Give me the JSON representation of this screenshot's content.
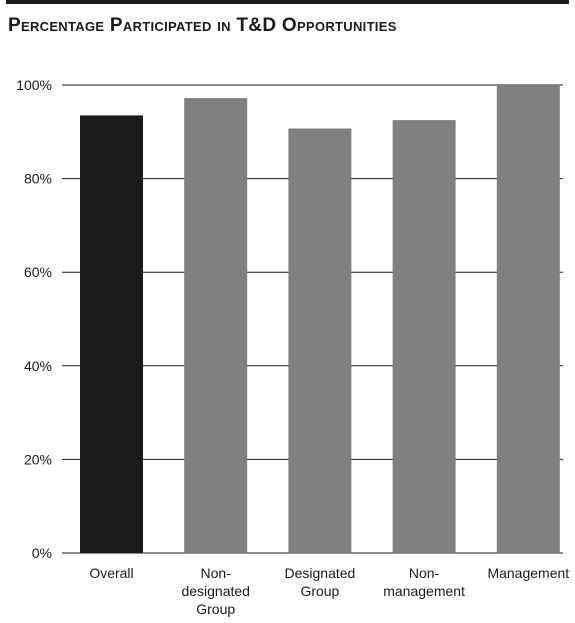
{
  "chart_data": {
    "type": "bar",
    "title": "Percentage Participated in T&D Opportunities",
    "xlabel": "",
    "ylabel": "",
    "categories": [
      [
        "Overall"
      ],
      [
        "Non-",
        "designated",
        "Group"
      ],
      [
        "Designated",
        "Group"
      ],
      [
        "Non-",
        "management"
      ],
      [
        "Management"
      ]
    ],
    "values": [
      93.5,
      97.2,
      90.7,
      92.5,
      100
    ],
    "ylim": [
      0,
      100
    ],
    "yticks": [
      0,
      20,
      40,
      60,
      80,
      100
    ],
    "ytick_labels": [
      "0%",
      "20%",
      "40%",
      "60%",
      "80%",
      "100%"
    ],
    "grid": true,
    "legend": "none",
    "colors": {
      "highlight": "#1c1a1b",
      "bar": "#808083",
      "grid": "#1a1a1a"
    }
  }
}
